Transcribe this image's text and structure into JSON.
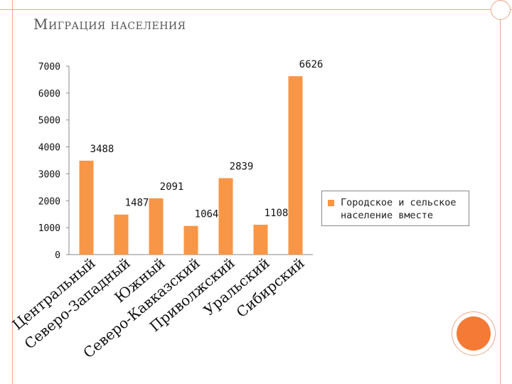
{
  "page": {
    "title": "Миграция населения"
  },
  "colors": {
    "bar": "#f79646",
    "frame": "#e8a98c",
    "accent": "#f47a35"
  },
  "chart_data": {
    "type": "bar",
    "categories": [
      "Центральный",
      "Северо-Западный",
      "Южный",
      "Северо-Кавказский",
      "Приволжский",
      "Уральский",
      "Сибирский"
    ],
    "series": [
      {
        "name": "Городское и сельское население вместе",
        "values": [
          3488,
          1487,
          2091,
          1064,
          2839,
          1108,
          6626
        ]
      }
    ],
    "ylim": [
      0,
      7000
    ],
    "yticks": [
      0,
      1000,
      2000,
      3000,
      4000,
      5000,
      6000,
      7000
    ],
    "legend_position": "right",
    "grid": false
  }
}
